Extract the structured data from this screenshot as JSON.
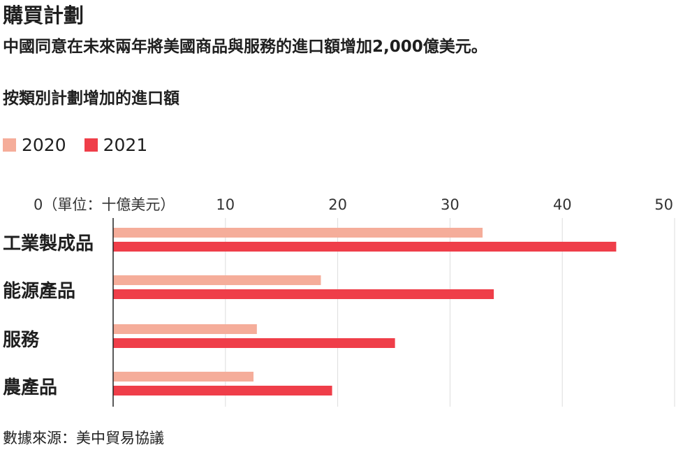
{
  "header": {
    "title": "購買計劃",
    "subtitle": "中國同意在未來兩年將美國商品與服務的進口額增加2,000億美元。"
  },
  "footer": {
    "source": "數據來源：美中貿易協議"
  },
  "chart_data": {
    "type": "bar",
    "orientation": "horizontal",
    "title": "按類別計劃增加的進口額",
    "xlabel": "單位：十億美元",
    "first_tick_label": "0（單位：十億美元）",
    "categories": [
      "工業製成品",
      "能源產品",
      "服務",
      "農產品"
    ],
    "series": [
      {
        "name": "2020",
        "color": "#f5ad9a",
        "values": [
          32.9,
          18.5,
          12.8,
          12.5
        ]
      },
      {
        "name": "2021",
        "color": "#ef3e49",
        "values": [
          44.8,
          33.9,
          25.1,
          19.5
        ]
      }
    ],
    "xlim": [
      0,
      50
    ],
    "xticks": [
      0,
      10,
      20,
      30,
      40,
      50
    ],
    "grid": true,
    "legend": "top-left"
  }
}
